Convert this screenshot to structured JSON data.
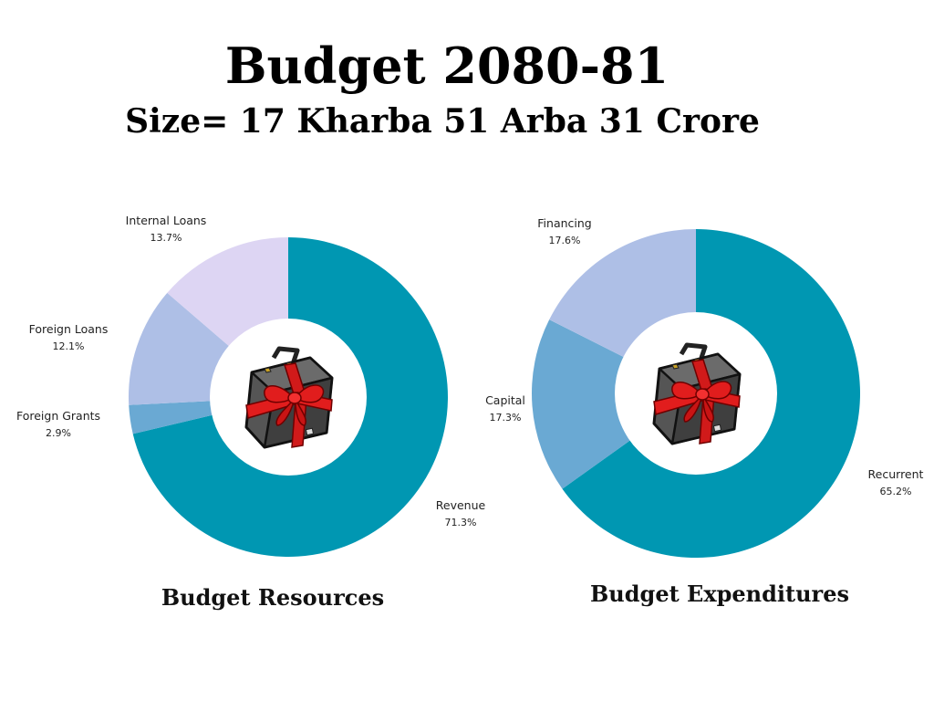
{
  "header": {
    "title": "Budget 2080-81",
    "subtitle": "Size= 17 Kharba 51 Arba 31 Crore"
  },
  "chart_data": [
    {
      "type": "pie",
      "title": "Budget Resources",
      "center_icon": "briefcase-gift-icon",
      "slices": [
        {
          "name": "Revenue",
          "label": "71.3%",
          "value": 71.3,
          "color": "#0097b2"
        },
        {
          "name": "Foreign Grants",
          "label": "2.9%",
          "value": 2.9,
          "color": "#6aa9d3"
        },
        {
          "name": "Foreign Loans",
          "label": "12.1%",
          "value": 12.1,
          "color": "#aebfe6"
        },
        {
          "name": "Internal Loans",
          "label": "13.7%",
          "value": 13.7,
          "color": "#ddd5f3"
        }
      ]
    },
    {
      "type": "pie",
      "title": "Budget Expenditures",
      "center_icon": "briefcase-gift-icon",
      "slices": [
        {
          "name": "Recurrent",
          "label": "65.2%",
          "value": 65.2,
          "color": "#0097b2"
        },
        {
          "name": "Capital",
          "label": "17.3%",
          "value": 17.3,
          "color": "#6aa9d3"
        },
        {
          "name": "Financing",
          "label": "17.6%",
          "value": 17.6,
          "color": "#aebfe6"
        }
      ]
    }
  ]
}
